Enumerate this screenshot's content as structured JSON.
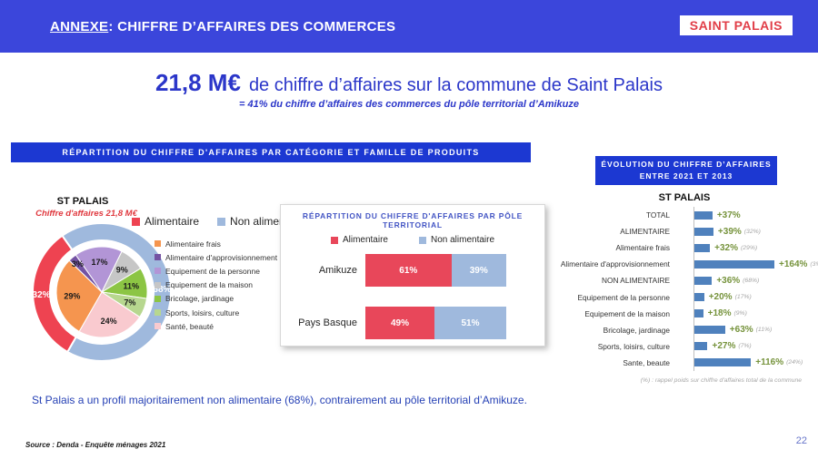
{
  "header": {
    "title_annexe": "ANNEXE",
    "title_rest": " : CHIFFRE D’AFFAIRES DES COMMERCES",
    "brand": "SAINT PALAIS"
  },
  "hero": {
    "amount": "21,8 M€",
    "title": "de chiffre d’affaires sur la commune de Saint Palais",
    "subtitle": "= 41% du chiffre d’affaires des commerces du pôle territorial d’Amikuze"
  },
  "banners": {
    "left": "RÉPARTITION DU CHIFFRE D'AFFAIRES PAR CATÉGORIE ET FAMILLE DE PRODUITS",
    "right_line1": "ÉVOLUTION DU CHIFFRE D’AFFAIRES",
    "right_line2": "ENTRE 2021 ET 2013"
  },
  "insight": "St Palais a un profil majoritairement non alimentaire (68%), contrairement au pôle territorial d’Amikuze.",
  "source": "Source : Denda - Enquête ménages 2021",
  "page_number": "22",
  "colors": {
    "header_blue": "#3B46DB",
    "banner_blue": "#1C38D2",
    "title_blue": "#2B36C9",
    "brand_red": "#E13E48",
    "alimentaire_red": "#EE4351",
    "non_alimentaire_blue": "#9FB9DD",
    "evolution_bar_blue": "#4F81BD",
    "evolution_value_olive": "#76933C"
  },
  "chart_data": [
    {
      "id": "donut-st-palais",
      "type": "pie",
      "title": "ST PALAIS",
      "subtitle": "Chiffre d'affaires 21,8 M€",
      "start_angle_deg": -35,
      "legend_primary": [
        {
          "label": "Alimentaire",
          "color": "#EE4351"
        },
        {
          "label": "Non alimentaire",
          "color": "#9FB9DD"
        }
      ],
      "outer": {
        "series_name": "Catégorie",
        "slices": [
          {
            "label": "Non alimentaire",
            "value": 68,
            "color": "#9FB9DD",
            "text_color": "#ffffff"
          },
          {
            "label": "Alimentaire",
            "value": 32,
            "color": "#EE4351",
            "text_color": "#ffffff"
          }
        ]
      },
      "inner": {
        "series_name": "Famille de produits",
        "slices": [
          {
            "label": "Equipement de la personne",
            "value": 17,
            "color": "#B295D6"
          },
          {
            "label": "Equipement de la maison",
            "value": 9,
            "color": "#C6C6C6"
          },
          {
            "label": "Bricolage, jardinage",
            "value": 11,
            "color": "#8CC544"
          },
          {
            "label": "Sports, loisirs, culture",
            "value": 7,
            "color": "#B7D78F"
          },
          {
            "label": "Santé, beauté",
            "value": 24,
            "color": "#F9CACF"
          },
          {
            "label": "Alimentaire frais",
            "value": 29,
            "color": "#F5954F"
          },
          {
            "label": "Alimentaire d'approvisionnement",
            "value": 3,
            "color": "#7453A3"
          }
        ]
      },
      "legend_families": [
        {
          "label": "Alimentaire frais",
          "color": "#F5954F"
        },
        {
          "label": "Alimentaire d'approvisionnement",
          "color": "#7453A3"
        },
        {
          "label": "Equipement de la personne",
          "color": "#B295D6"
        },
        {
          "label": "Equipement de la maison",
          "color": "#C6C6C6"
        },
        {
          "label": "Bricolage, jardinage",
          "color": "#8CC544"
        },
        {
          "label": "Sports, loisirs, culture",
          "color": "#B7D78F"
        },
        {
          "label": "Santé, beauté",
          "color": "#F9CACF"
        }
      ]
    },
    {
      "id": "pole-territorial",
      "type": "bar",
      "stacked": true,
      "orientation": "horizontal",
      "title": "RÉPARTITION DU CHIFFRE D'AFFAIRES PAR PÔLE TERRITORIAL",
      "categories": [
        "Amikuze",
        "Pays Basque"
      ],
      "series": [
        {
          "name": "Alimentaire",
          "color": "#E8475A",
          "values": [
            61,
            49
          ]
        },
        {
          "name": "Non alimentaire",
          "color": "#9FB9DD",
          "values": [
            39,
            51
          ]
        }
      ],
      "value_suffix": "%",
      "xlim": [
        0,
        100
      ]
    },
    {
      "id": "evolution-st-palais",
      "type": "bar",
      "orientation": "horizontal",
      "title": "ST PALAIS",
      "bar_color": "#4F81BD",
      "xlim": [
        0,
        175
      ],
      "rows": [
        {
          "label": "TOTAL",
          "value": 37,
          "value_label": "+37%",
          "weight": ""
        },
        {
          "label": "ALIMENTAIRE",
          "value": 39,
          "value_label": "+39%",
          "weight": "(32%)"
        },
        {
          "label": "Alimentaire frais",
          "value": 32,
          "value_label": "+32%",
          "weight": "(29%)"
        },
        {
          "label": "Alimentaire d'approvisionnement",
          "value": 164,
          "value_label": "+164%",
          "weight": "(3%)"
        },
        {
          "label": "NON ALIMENTAIRE",
          "value": 36,
          "value_label": "+36%",
          "weight": "(68%)"
        },
        {
          "label": "Equipement de la personne",
          "value": 20,
          "value_label": "+20%",
          "weight": "(17%)"
        },
        {
          "label": "Equipement de la maison",
          "value": 18,
          "value_label": "+18%",
          "weight": "(9%)"
        },
        {
          "label": "Bricolage, jardinage",
          "value": 63,
          "value_label": "+63%",
          "weight": "(11%)"
        },
        {
          "label": "Sports, loisirs, culture",
          "value": 27,
          "value_label": "+27%",
          "weight": "(7%)"
        },
        {
          "label": "Sante, beaute",
          "value": 116,
          "value_label": "+116%",
          "weight": "(24%)"
        }
      ],
      "footnote": "(%) : rappel poids sur chiffre d'affaires total de la commune"
    }
  ]
}
